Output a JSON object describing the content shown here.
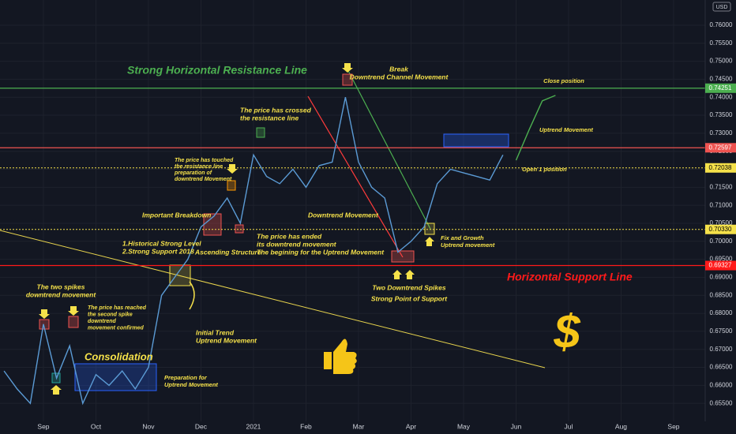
{
  "chart_data": {
    "type": "line",
    "currency": "USD",
    "categories": [
      null,
      null,
      null,
      "Sep",
      null,
      null,
      null,
      "Oct",
      null,
      null,
      null,
      "Nov",
      null,
      null,
      null,
      "Dec",
      null,
      null,
      null,
      "2021",
      null,
      null,
      null,
      "Feb",
      null,
      null,
      null,
      "Mar",
      null,
      null,
      null,
      "Apr",
      null,
      null,
      null,
      "May",
      null,
      null,
      null,
      "Jun",
      null,
      null,
      null,
      "Jul",
      null,
      null,
      null,
      "Aug",
      null,
      null,
      null,
      "Sep"
    ],
    "series": [
      {
        "color": "#5b9bd5",
        "values": [
          0.664,
          0.659,
          0.655,
          0.677,
          0.662,
          0.671,
          0.655,
          0.663,
          0.66,
          0.664,
          0.659,
          0.665,
          0.685,
          0.69,
          0.695,
          0.704,
          0.707,
          0.712,
          0.705,
          0.724,
          0.718,
          0.716,
          0.72,
          0.715,
          0.721,
          0.722,
          0.74,
          0.722,
          0.715,
          0.712,
          0.697,
          0.7,
          0.704,
          0.716,
          0.72,
          0.719,
          0.718,
          0.717,
          0.724,
          null,
          null,
          null,
          null,
          null,
          null,
          null,
          null,
          null,
          null,
          null,
          null,
          null
        ]
      },
      {
        "color": "#4caf50",
        "values": [
          null,
          null,
          null,
          null,
          null,
          null,
          null,
          null,
          null,
          null,
          null,
          null,
          null,
          null,
          null,
          null,
          null,
          null,
          null,
          null,
          null,
          null,
          null,
          null,
          null,
          null,
          null,
          null,
          null,
          null,
          null,
          null,
          null,
          null,
          null,
          null,
          null,
          null,
          null,
          0.7225,
          0.731,
          0.739,
          0.7405,
          null,
          null,
          null,
          null,
          null,
          null,
          null,
          null,
          null
        ]
      }
    ],
    "ylim": [
      0.65,
      0.767
    ],
    "yticks": [
      {
        "value": 0.655,
        "label": "0.65500"
      },
      {
        "value": 0.66,
        "label": "0.66000"
      },
      {
        "value": 0.665,
        "label": "0.66500"
      },
      {
        "value": 0.67,
        "label": "0.67000"
      },
      {
        "value": 0.675,
        "label": "0.67500"
      },
      {
        "value": 0.68,
        "label": "0.68000"
      },
      {
        "value": 0.685,
        "label": "0.68500"
      },
      {
        "value": 0.69,
        "label": "0.69000"
      },
      {
        "value": 0.695,
        "label": "0.69500"
      },
      {
        "value": 0.7,
        "label": "0.70000"
      },
      {
        "value": 0.705,
        "label": "0.70500"
      },
      {
        "value": 0.71,
        "label": "0.71000"
      },
      {
        "value": 0.715,
        "label": "0.71500"
      },
      {
        "value": 0.72,
        "label": "0.72000"
      },
      {
        "value": 0.725,
        "label": "0.72500"
      },
      {
        "value": 0.73,
        "label": "0.73000"
      },
      {
        "value": 0.735,
        "label": "0.73500"
      },
      {
        "value": 0.74,
        "label": "0.74000"
      },
      {
        "value": 0.745,
        "label": "0.74500"
      },
      {
        "value": 0.75,
        "label": "0.75000"
      },
      {
        "value": 0.755,
        "label": "0.75500"
      },
      {
        "value": 0.76,
        "label": "0.76000"
      }
    ],
    "grid": true,
    "price_lines": [
      {
        "value": 0.74251,
        "color": "#4caf50",
        "style": "solid"
      },
      {
        "value": 0.72597,
        "color": "#ef5350",
        "style": "solid"
      },
      {
        "value": 0.72038,
        "color": "#f5e14a",
        "style": "dotted"
      },
      {
        "value": 0.7033,
        "label": "0.70330",
        "color": "#f5e14a",
        "style": "dotted"
      },
      {
        "value": 0.69327,
        "color": "#ff1a1a",
        "style": "solid"
      }
    ],
    "annotations": [
      [
        "Strong Horizontal Resistance Line"
      ],
      [
        "Break",
        "Downtrend Channel Movement"
      ],
      [
        "Close position"
      ],
      [
        "The price has crossed",
        "the resistance line"
      ],
      [
        "Uptrend Movement"
      ],
      [
        "The price has touched",
        "the resistance line",
        "preparation of",
        "downtrend Movement"
      ],
      [
        "Open 1 position"
      ],
      [
        "Important Breakdown"
      ],
      [
        "Downtrend Movement"
      ],
      [
        "1.Historical Strong Level",
        "2.Strong Support 2018"
      ],
      [
        "Ascending Structure"
      ],
      [
        "The price has ended",
        "its downtrend movement",
        "The begining for the Uptrend Movement"
      ],
      [
        "Fix and Growth",
        "Uptrend movement"
      ],
      [
        "Two Downtrend Spikes",
        "Strong Point of Support"
      ],
      [
        "Horizontal Support Line"
      ],
      [
        "The two spikes",
        "downtrend movement"
      ],
      [
        "The price has reached",
        "the second spike",
        "downtrend",
        "movement confirmed"
      ],
      [
        "Initial Trend",
        "Uptrend Movement"
      ],
      [
        "Consolidation"
      ],
      [
        "Preparation for",
        "Uptrend Movement"
      ],
      [
        "$"
      ]
    ]
  }
}
